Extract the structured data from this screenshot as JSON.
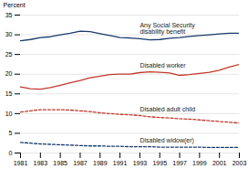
{
  "chart_data": {
    "type": "line",
    "x": [
      1981,
      1982,
      1983,
      1984,
      1985,
      1986,
      1987,
      1988,
      1989,
      1990,
      1991,
      1992,
      1993,
      1994,
      1995,
      1996,
      1997,
      1998,
      1999,
      2000,
      2001,
      2002,
      2003
    ],
    "series": [
      {
        "name": "Any Social Security\ndisability benefit",
        "color": "#1a3a6b",
        "line_style": "solid",
        "values": [
          28.5,
          28.8,
          29.3,
          29.5,
          30.0,
          30.4,
          30.9,
          30.8,
          30.3,
          29.8,
          29.3,
          29.2,
          29.0,
          28.7,
          28.8,
          29.1,
          29.3,
          29.6,
          29.8,
          30.0,
          30.2,
          30.4,
          30.4
        ]
      },
      {
        "name": "Disabled worker",
        "color": "#c0392b",
        "line_style": "solid",
        "values": [
          16.8,
          16.3,
          16.2,
          16.6,
          17.2,
          17.8,
          18.4,
          19.1,
          19.5,
          19.9,
          20.0,
          20.0,
          20.4,
          20.6,
          20.5,
          20.3,
          19.7,
          19.9,
          20.2,
          20.5,
          21.0,
          21.8,
          22.5
        ]
      },
      {
        "name": "Disabled adult child",
        "color": "#c0392b",
        "line_style": "dashed",
        "values": [
          10.4,
          10.7,
          11.0,
          11.0,
          11.0,
          10.9,
          10.7,
          10.5,
          10.2,
          10.0,
          9.8,
          9.7,
          9.5,
          9.2,
          9.0,
          8.9,
          8.7,
          8.6,
          8.4,
          8.2,
          8.0,
          7.8,
          7.6
        ]
      },
      {
        "name": "Disabled widow(er)",
        "color": "#1a3a6b",
        "line_style": "dashed",
        "values": [
          2.7,
          2.5,
          2.3,
          2.2,
          2.1,
          2.0,
          1.9,
          1.8,
          1.8,
          1.7,
          1.7,
          1.6,
          1.6,
          1.6,
          1.5,
          1.5,
          1.5,
          1.5,
          1.5,
          1.4,
          1.4,
          1.4,
          1.4
        ]
      }
    ],
    "xlim": [
      1981,
      2003
    ],
    "xticks": [
      1981,
      1983,
      1985,
      1987,
      1989,
      1991,
      1993,
      1995,
      1997,
      1999,
      2001,
      2003
    ],
    "ylim": [
      0,
      35
    ],
    "yticks": [
      0,
      5,
      10,
      15,
      20,
      25,
      30,
      35
    ],
    "ylabel": "Percent",
    "grid": true
  }
}
